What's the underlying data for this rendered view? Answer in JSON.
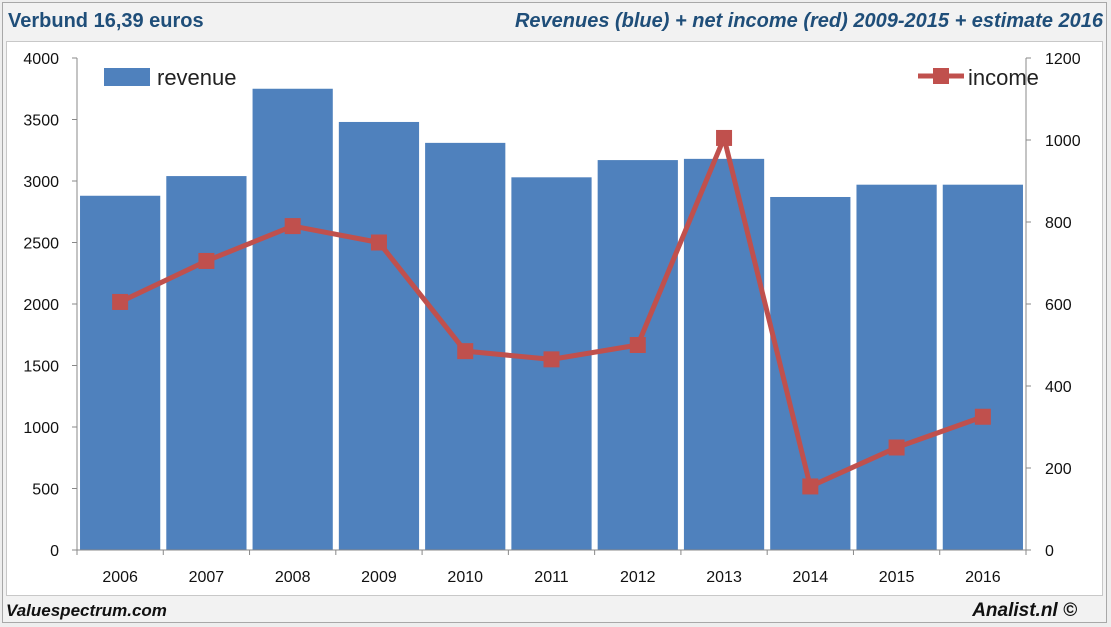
{
  "header": {
    "title_left": "Verbund 16,39 euros",
    "title_right": "Revenues (blue) + net income (red) 2009-2015 + estimate 2016"
  },
  "footer": {
    "left": "Valuespectrum.com",
    "right": "Analist.nl ©"
  },
  "colors": {
    "bar": "#4f81bd",
    "line": "#c0504d",
    "title": "#1f4e79"
  },
  "chart_data": {
    "type": "bar",
    "categories": [
      "2006",
      "2007",
      "2008",
      "2009",
      "2010",
      "2011",
      "2012",
      "2013",
      "2014",
      "2015",
      "2016"
    ],
    "series": [
      {
        "name": "revenue",
        "type": "bar",
        "axis": "left",
        "values": [
          2880,
          3040,
          3750,
          3480,
          3310,
          3030,
          3170,
          3180,
          2870,
          2970,
          2970
        ]
      },
      {
        "name": "income",
        "type": "line",
        "axis": "right",
        "values": [
          605,
          705,
          790,
          750,
          485,
          465,
          500,
          1005,
          155,
          250,
          325
        ]
      }
    ],
    "left_axis": {
      "min": 0,
      "max": 4000,
      "step": 500,
      "ticks": [
        "0",
        "500",
        "1000",
        "1500",
        "2000",
        "2500",
        "3000",
        "3500",
        "4000"
      ]
    },
    "right_axis": {
      "min": 0,
      "max": 1200,
      "step": 200,
      "ticks": [
        "0",
        "200",
        "400",
        "600",
        "800",
        "1000",
        "1200"
      ]
    },
    "legend": [
      {
        "label": "revenue",
        "position": "top-left"
      },
      {
        "label": "income",
        "position": "top-right"
      }
    ],
    "title": "Revenues (blue) + net income (red) 2009-2015 + estimate 2016",
    "xlabel": "",
    "ylabel": ""
  }
}
